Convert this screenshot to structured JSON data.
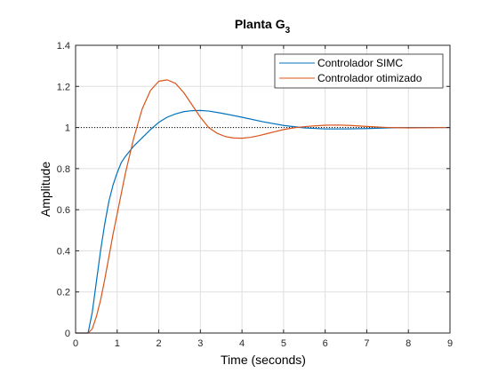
{
  "chart_data": {
    "type": "line",
    "title_main": "Planta G",
    "title_sub": "3",
    "xlabel": "Time (seconds)",
    "ylabel": "Amplitude",
    "xlim": [
      0,
      9
    ],
    "ylim": [
      0,
      1.4
    ],
    "xticks": [
      "0",
      "1",
      "2",
      "3",
      "4",
      "5",
      "6",
      "7",
      "8",
      "9"
    ],
    "yticks": [
      "0",
      "0.2",
      "0.4",
      "0.6",
      "0.8",
      "1",
      "1.2",
      "1.4"
    ],
    "grid": true,
    "legend_position": "top-right",
    "reference_line": {
      "y": 1,
      "style": "dotted",
      "color": "#000000"
    },
    "series": [
      {
        "name": "Controlador SIMC",
        "color": "#0072BD",
        "x": [
          0,
          0.3,
          0.4,
          0.5,
          0.6,
          0.7,
          0.8,
          0.9,
          1.0,
          1.1,
          1.2,
          1.4,
          1.6,
          1.8,
          2.0,
          2.2,
          2.4,
          2.6,
          2.8,
          3.0,
          3.2,
          3.5,
          4.0,
          4.5,
          5.0,
          5.5,
          6.0,
          6.5,
          7.0,
          7.5,
          8.0,
          8.5,
          9.0
        ],
        "y": [
          0,
          0,
          0.1,
          0.25,
          0.4,
          0.53,
          0.64,
          0.72,
          0.78,
          0.83,
          0.86,
          0.91,
          0.95,
          0.99,
          1.025,
          1.05,
          1.066,
          1.077,
          1.082,
          1.083,
          1.08,
          1.07,
          1.05,
          1.028,
          1.01,
          0.998,
          0.993,
          0.993,
          0.995,
          0.998,
          1.0,
          1.0,
          1.0
        ]
      },
      {
        "name": "Controlador otimizado",
        "color": "#D95319",
        "x": [
          0,
          0.3,
          0.4,
          0.5,
          0.6,
          0.7,
          0.8,
          0.9,
          1.0,
          1.2,
          1.4,
          1.6,
          1.8,
          2.0,
          2.2,
          2.4,
          2.6,
          2.8,
          3.0,
          3.2,
          3.4,
          3.6,
          3.8,
          4.0,
          4.2,
          4.4,
          4.6,
          4.8,
          5.0,
          5.3,
          5.6,
          6.0,
          6.3,
          6.6,
          7.0,
          7.5,
          8.0,
          8.5,
          9.0
        ],
        "y": [
          0,
          0,
          0.02,
          0.08,
          0.16,
          0.26,
          0.37,
          0.48,
          0.58,
          0.78,
          0.95,
          1.09,
          1.18,
          1.225,
          1.232,
          1.215,
          1.17,
          1.11,
          1.05,
          1.0,
          0.972,
          0.956,
          0.949,
          0.948,
          0.952,
          0.96,
          0.97,
          0.98,
          0.99,
          1.0,
          1.006,
          1.011,
          1.012,
          1.01,
          1.005,
          1.0,
          0.998,
          0.999,
          1.0
        ]
      }
    ]
  }
}
